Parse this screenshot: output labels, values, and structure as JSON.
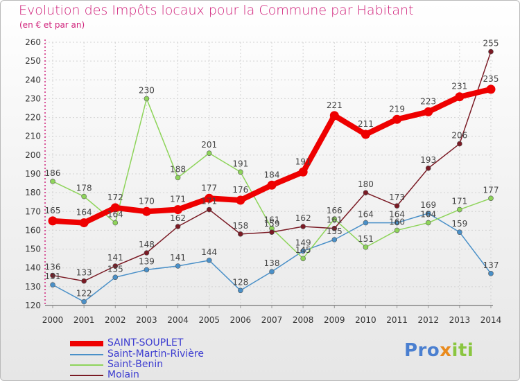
{
  "title": "Evolution des Impôts locaux pour la Commune par Habitant",
  "subtitle": "(en € et par an)",
  "brand": {
    "p": "Pro",
    "x": "x",
    "iti": "iti"
  },
  "colors": {
    "saint_souplet": "#ee0000",
    "saint_martin": "#4a90c8",
    "saint_benin": "#8ed45a",
    "molain": "#7a1a24",
    "title": "#d0207a"
  },
  "chart_data": {
    "type": "line",
    "x": [
      2000,
      2001,
      2002,
      2003,
      2004,
      2005,
      2006,
      2007,
      2008,
      2009,
      2010,
      2011,
      2012,
      2013,
      2014
    ],
    "ylim": [
      120,
      260
    ],
    "yticks": [
      120,
      130,
      140,
      150,
      160,
      170,
      180,
      190,
      200,
      210,
      220,
      230,
      240,
      250,
      260
    ],
    "series": [
      {
        "name": "SAINT-SOUPLET",
        "values": [
          165,
          164,
          172,
          170,
          171,
          177,
          176,
          184,
          191,
          221,
          211,
          219,
          223,
          231,
          235
        ]
      },
      {
        "name": "Saint-Martin-Rivière",
        "values": [
          131,
          122,
          135,
          139,
          141,
          144,
          128,
          138,
          149,
          155,
          164,
          164,
          169,
          159,
          137
        ]
      },
      {
        "name": "Saint-Benin",
        "values": [
          186,
          178,
          164,
          230,
          188,
          201,
          191,
          161,
          145,
          166,
          151,
          160,
          164,
          171,
          177
        ]
      },
      {
        "name": "Molain",
        "values": [
          136,
          133,
          141,
          148,
          162,
          171,
          158,
          159,
          162,
          161,
          180,
          173,
          193,
          206,
          255
        ]
      }
    ]
  }
}
